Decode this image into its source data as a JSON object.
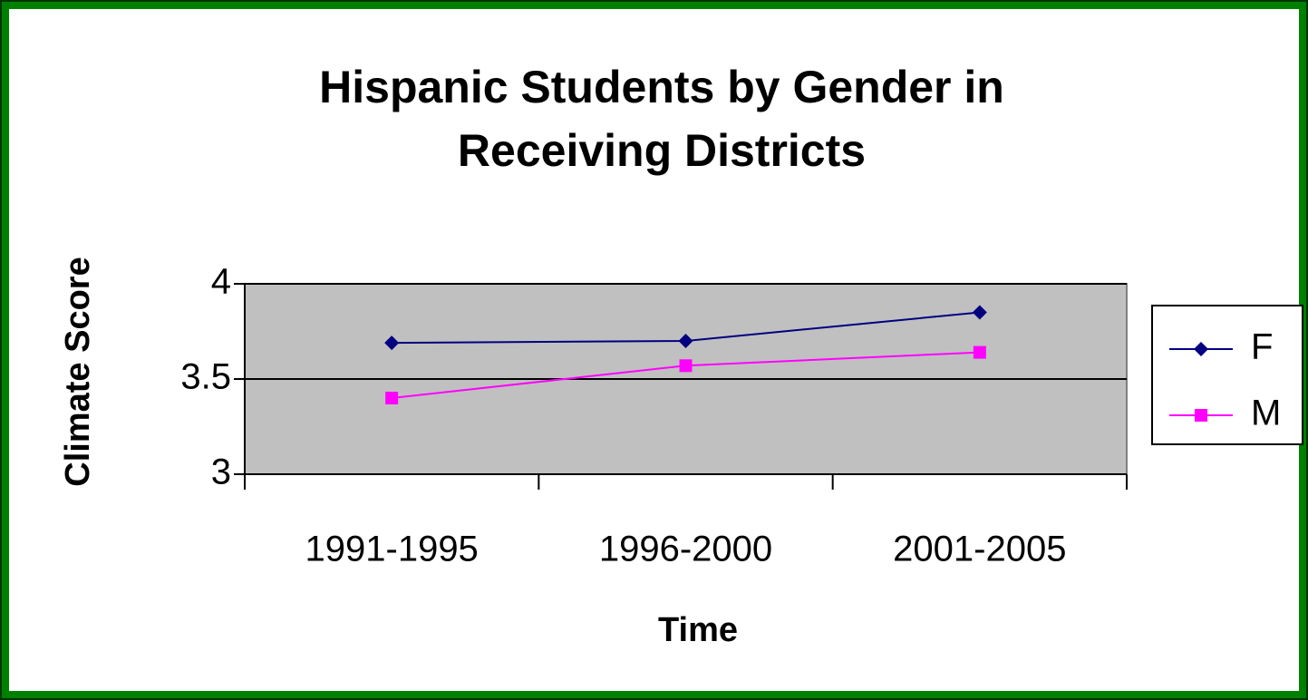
{
  "chart_data": {
    "type": "line",
    "title": [
      "Hispanic Students by Gender in",
      "Receiving Districts"
    ],
    "x_label": "Time",
    "y_label": "Climate Score",
    "categories": [
      "1991-1995",
      "1996-2000",
      "2001-2005"
    ],
    "series": [
      {
        "name": "F",
        "color": "#000080",
        "marker": "diamond",
        "values": [
          3.69,
          3.7,
          3.85
        ]
      },
      {
        "name": "M",
        "color": "#ff00ff",
        "marker": "square",
        "values": [
          3.4,
          3.57,
          3.64
        ]
      }
    ],
    "ylim": [
      3,
      4
    ],
    "yticks": [
      3,
      3.5,
      4
    ],
    "grid": true,
    "legend": "right"
  }
}
